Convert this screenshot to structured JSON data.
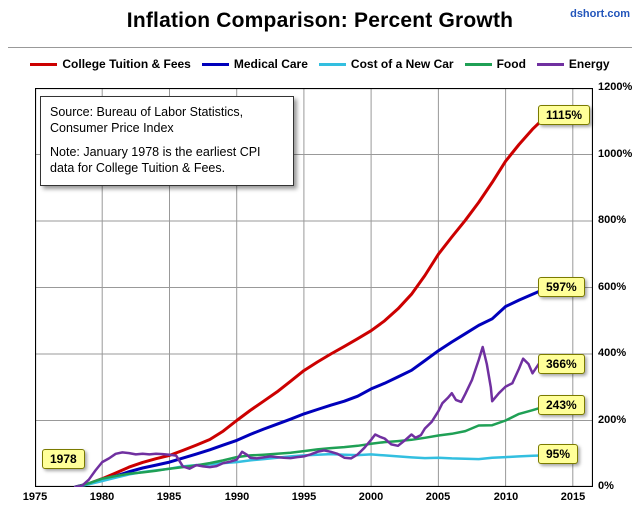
{
  "header": {
    "title": "Inflation Comparison: Percent Growth",
    "site": "dshort.com"
  },
  "notes": {
    "source": "Source: Bureau of Labor Statistics, Consumer Price Index",
    "note": "Note: January 1978 is the earliest CPI data for College Tuition & Fees."
  },
  "start_label": "1978",
  "colors": {
    "callout_bg": "#ffff99",
    "site_link": "#2255bb",
    "gridline": "#999999"
  },
  "chart_data": {
    "type": "line",
    "title": "Inflation Comparison: Percent Growth",
    "xlabel": "",
    "ylabel": "",
    "x_min": 1975,
    "x_max": 2016.5,
    "y_min": 0,
    "y_max": 1200,
    "x_ticks": [
      1975,
      1980,
      1985,
      1990,
      1995,
      2000,
      2005,
      2010,
      2015
    ],
    "y_ticks": [
      0,
      200,
      400,
      600,
      800,
      1000,
      1200
    ],
    "y_tick_suffix": "%",
    "grid": true,
    "legend_position": "top",
    "y_axis_side": "right",
    "series": [
      {
        "id": "tuition",
        "name": "College Tuition & Fees",
        "color": "#cc0000",
        "width": 3,
        "end_label": "1115%",
        "points": [
          [
            1978,
            0
          ],
          [
            1979,
            10
          ],
          [
            1980,
            25
          ],
          [
            1981,
            42
          ],
          [
            1982,
            60
          ],
          [
            1983,
            74
          ],
          [
            1984,
            85
          ],
          [
            1985,
            95
          ],
          [
            1986,
            110
          ],
          [
            1987,
            126
          ],
          [
            1988,
            143
          ],
          [
            1989,
            168
          ],
          [
            1990,
            200
          ],
          [
            1991,
            230
          ],
          [
            1992,
            258
          ],
          [
            1993,
            286
          ],
          [
            1994,
            318
          ],
          [
            1995,
            350
          ],
          [
            1996,
            376
          ],
          [
            1997,
            400
          ],
          [
            1998,
            423
          ],
          [
            1999,
            446
          ],
          [
            2000,
            470
          ],
          [
            2001,
            500
          ],
          [
            2002,
            536
          ],
          [
            2003,
            580
          ],
          [
            2004,
            636
          ],
          [
            2005,
            700
          ],
          [
            2006,
            752
          ],
          [
            2007,
            802
          ],
          [
            2008,
            856
          ],
          [
            2009,
            916
          ],
          [
            2010,
            980
          ],
          [
            2011,
            1030
          ],
          [
            2012,
            1076
          ],
          [
            2013,
            1115
          ]
        ]
      },
      {
        "id": "medical",
        "name": "Medical Care",
        "color": "#0000bb",
        "width": 3,
        "end_label": "597%",
        "points": [
          [
            1978,
            0
          ],
          [
            1979,
            10
          ],
          [
            1980,
            21
          ],
          [
            1981,
            33
          ],
          [
            1982,
            46
          ],
          [
            1983,
            57
          ],
          [
            1984,
            66
          ],
          [
            1985,
            75
          ],
          [
            1986,
            87
          ],
          [
            1987,
            99
          ],
          [
            1988,
            112
          ],
          [
            1989,
            126
          ],
          [
            1990,
            140
          ],
          [
            1991,
            158
          ],
          [
            1992,
            174
          ],
          [
            1993,
            189
          ],
          [
            1994,
            204
          ],
          [
            1995,
            220
          ],
          [
            1996,
            233
          ],
          [
            1997,
            246
          ],
          [
            1998,
            258
          ],
          [
            1999,
            273
          ],
          [
            2000,
            295
          ],
          [
            2001,
            312
          ],
          [
            2002,
            331
          ],
          [
            2003,
            351
          ],
          [
            2004,
            380
          ],
          [
            2005,
            410
          ],
          [
            2006,
            436
          ],
          [
            2007,
            461
          ],
          [
            2008,
            486
          ],
          [
            2009,
            506
          ],
          [
            2010,
            543
          ],
          [
            2011,
            562
          ],
          [
            2012,
            580
          ],
          [
            2013,
            597
          ]
        ]
      },
      {
        "id": "new-car",
        "name": "Cost of a New Car",
        "color": "#33bfe0",
        "width": 2.5,
        "end_label": "95%",
        "points": [
          [
            1978,
            0
          ],
          [
            1979,
            8
          ],
          [
            1980,
            18
          ],
          [
            1981,
            28
          ],
          [
            1982,
            38
          ],
          [
            1983,
            45
          ],
          [
            1984,
            50
          ],
          [
            1985,
            55
          ],
          [
            1986,
            62
          ],
          [
            1987,
            66
          ],
          [
            1988,
            68
          ],
          [
            1989,
            72
          ],
          [
            1990,
            75
          ],
          [
            1991,
            80
          ],
          [
            1992,
            84
          ],
          [
            1993,
            88
          ],
          [
            1994,
            92
          ],
          [
            1995,
            95
          ],
          [
            1996,
            97
          ],
          [
            1997,
            99
          ],
          [
            1998,
            97
          ],
          [
            1999,
            96
          ],
          [
            2000,
            98
          ],
          [
            2001,
            95
          ],
          [
            2002,
            92
          ],
          [
            2003,
            89
          ],
          [
            2004,
            87
          ],
          [
            2005,
            88
          ],
          [
            2006,
            86
          ],
          [
            2007,
            85
          ],
          [
            2008,
            84
          ],
          [
            2009,
            88
          ],
          [
            2010,
            90
          ],
          [
            2011,
            92
          ],
          [
            2012,
            94
          ],
          [
            2013,
            95
          ]
        ]
      },
      {
        "id": "food",
        "name": "Food",
        "color": "#1fa055",
        "width": 2.5,
        "end_label": "243%",
        "points": [
          [
            1978,
            0
          ],
          [
            1979,
            11
          ],
          [
            1980,
            25
          ],
          [
            1981,
            33
          ],
          [
            1982,
            40
          ],
          [
            1983,
            44
          ],
          [
            1984,
            49
          ],
          [
            1985,
            55
          ],
          [
            1986,
            60
          ],
          [
            1987,
            65
          ],
          [
            1988,
            72
          ],
          [
            1989,
            80
          ],
          [
            1990,
            90
          ],
          [
            1991,
            95
          ],
          [
            1992,
            97
          ],
          [
            1993,
            100
          ],
          [
            1994,
            103
          ],
          [
            1995,
            108
          ],
          [
            1996,
            113
          ],
          [
            1997,
            117
          ],
          [
            1998,
            120
          ],
          [
            1999,
            124
          ],
          [
            2000,
            130
          ],
          [
            2001,
            135
          ],
          [
            2002,
            138
          ],
          [
            2003,
            142
          ],
          [
            2004,
            148
          ],
          [
            2005,
            155
          ],
          [
            2006,
            160
          ],
          [
            2007,
            168
          ],
          [
            2008,
            185
          ],
          [
            2009,
            186
          ],
          [
            2010,
            200
          ],
          [
            2011,
            220
          ],
          [
            2012,
            231
          ],
          [
            2013,
            243
          ]
        ]
      },
      {
        "id": "energy",
        "name": "Energy",
        "color": "#7030a0",
        "width": 2.5,
        "end_label": "366%",
        "points": [
          [
            1978,
            0
          ],
          [
            1978.5,
            4
          ],
          [
            1979,
            22
          ],
          [
            1979.5,
            50
          ],
          [
            1980,
            75
          ],
          [
            1980.5,
            86
          ],
          [
            1981,
            100
          ],
          [
            1981.5,
            104
          ],
          [
            1982,
            102
          ],
          [
            1982.5,
            98
          ],
          [
            1983,
            100
          ],
          [
            1983.5,
            98
          ],
          [
            1984,
            100
          ],
          [
            1984.5,
            99
          ],
          [
            1985,
            97
          ],
          [
            1985.5,
            94
          ],
          [
            1986,
            62
          ],
          [
            1986.5,
            55
          ],
          [
            1987,
            66
          ],
          [
            1987.5,
            62
          ],
          [
            1988,
            60
          ],
          [
            1988.5,
            63
          ],
          [
            1989,
            72
          ],
          [
            1989.5,
            76
          ],
          [
            1990,
            82
          ],
          [
            1990.4,
            106
          ],
          [
            1990.8,
            96
          ],
          [
            1991,
            88
          ],
          [
            1991.5,
            86
          ],
          [
            1992,
            89
          ],
          [
            1992.5,
            92
          ],
          [
            1993,
            90
          ],
          [
            1993.5,
            88
          ],
          [
            1994,
            87
          ],
          [
            1994.5,
            90
          ],
          [
            1995,
            92
          ],
          [
            1995.5,
            98
          ],
          [
            1996,
            106
          ],
          [
            1996.5,
            110
          ],
          [
            1997,
            106
          ],
          [
            1997.5,
            100
          ],
          [
            1998,
            88
          ],
          [
            1998.5,
            86
          ],
          [
            1999,
            98
          ],
          [
            1999.5,
            118
          ],
          [
            2000,
            142
          ],
          [
            2000.3,
            158
          ],
          [
            2000.7,
            150
          ],
          [
            2001,
            146
          ],
          [
            2001.5,
            128
          ],
          [
            2002,
            124
          ],
          [
            2002.5,
            140
          ],
          [
            2003,
            158
          ],
          [
            2003.3,
            148
          ],
          [
            2003.7,
            156
          ],
          [
            2004,
            176
          ],
          [
            2004.5,
            196
          ],
          [
            2005,
            228
          ],
          [
            2005.3,
            252
          ],
          [
            2005.7,
            268
          ],
          [
            2006,
            282
          ],
          [
            2006.3,
            262
          ],
          [
            2006.7,
            256
          ],
          [
            2007,
            280
          ],
          [
            2007.5,
            322
          ],
          [
            2008,
            382
          ],
          [
            2008.3,
            421
          ],
          [
            2008.6,
            370
          ],
          [
            2008.9,
            300
          ],
          [
            2009,
            258
          ],
          [
            2009.5,
            282
          ],
          [
            2010,
            302
          ],
          [
            2010.5,
            312
          ],
          [
            2011,
            356
          ],
          [
            2011.3,
            386
          ],
          [
            2011.7,
            370
          ],
          [
            2012,
            342
          ],
          [
            2012.5,
            372
          ],
          [
            2013,
            366
          ]
        ]
      }
    ]
  }
}
